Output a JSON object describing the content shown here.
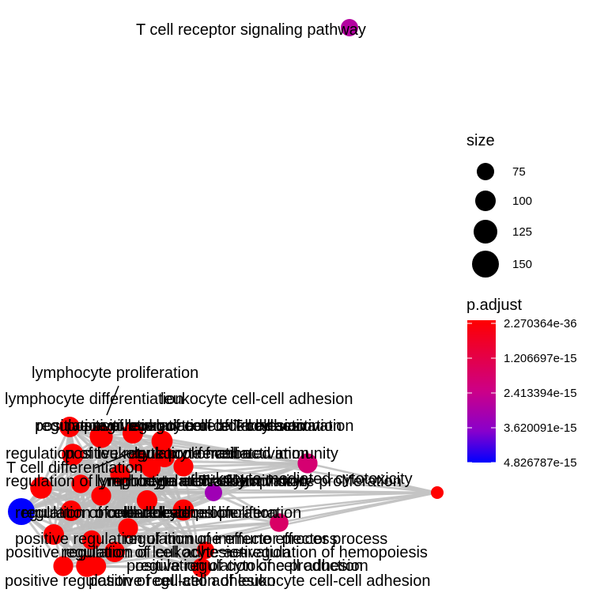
{
  "chart_data": {
    "type": "network",
    "title": "",
    "nodes": [
      {
        "label": "T cell receptor signaling pathway",
        "size": 75,
        "p_adjust": 2.9e-15
      },
      {
        "label": "lymphocyte proliferation",
        "size": 100,
        "p_adjust": 2.270364e-36
      },
      {
        "label": "lymphocyte differentiation",
        "size": 110,
        "p_adjust": 2.270364e-36
      },
      {
        "label": "leukocyte cell-cell adhesion",
        "size": 120,
        "p_adjust": 2.270364e-36
      },
      {
        "label": "positive regulation of cell-cell adhesion",
        "size": 100,
        "p_adjust": 2.270364e-36
      },
      {
        "label": "regulation of leukocyte cell-cell adhesion",
        "size": 105,
        "p_adjust": 2.270364e-36
      },
      {
        "label": "positive regulation of leukocyte activation",
        "size": 100,
        "p_adjust": 2.270364e-36
      },
      {
        "label": "positive regulation of T cell activation",
        "size": 95,
        "p_adjust": 2.270364e-36
      },
      {
        "label": "regulation of leukocyte proliferation",
        "size": 90,
        "p_adjust": 2.270364e-36
      },
      {
        "label": "positive regulation of cell activation",
        "size": 100,
        "p_adjust": 2.270364e-36
      },
      {
        "label": "leukocyte mediated immunity",
        "size": 95,
        "p_adjust": 2e-15
      },
      {
        "label": "T cell differentiation",
        "size": 95,
        "p_adjust": 2.270364e-36
      },
      {
        "label": "regulation of lymphocyte activation",
        "size": 110,
        "p_adjust": 2.270364e-36
      },
      {
        "label": "lymphocyte mediated immunity",
        "size": 85,
        "p_adjust": 2.270364e-36
      },
      {
        "label": "regulation of T cell activation",
        "size": 95,
        "p_adjust": 2.270364e-36
      },
      {
        "label": "leukocyte mediated cytotoxicity",
        "size": 75,
        "p_adjust": 3.3e-15
      },
      {
        "label": "regulation of cytokine production",
        "size": 85,
        "p_adjust": 1.8e-15
      },
      {
        "label": "regulation of lymphocyte proliferation",
        "size": 100,
        "p_adjust": 2.270364e-36
      },
      {
        "label": "regulation of cell-cell adhesion",
        "size": 105,
        "p_adjust": 2.270364e-36
      },
      {
        "label": "mononuclear cell proliferation",
        "size": 100,
        "p_adjust": 2.270364e-36
      },
      {
        "label": "regulation of cell adhesion",
        "size": 150,
        "p_adjust": 4.826787e-15
      },
      {
        "label": "leukocyte proliferation",
        "size": 95,
        "p_adjust": 2.270364e-36
      },
      {
        "label": "positive regulation of immune effector process",
        "size": 90,
        "p_adjust": 2.270364e-36
      },
      {
        "label": "regulation of immune effector process",
        "size": 100,
        "p_adjust": 2.270364e-36
      },
      {
        "label": "positive regulation of cell adhesion",
        "size": 100,
        "p_adjust": 2.270364e-36
      },
      {
        "label": "regulation of hemopoiesis",
        "size": 75,
        "p_adjust": 2.270364e-36
      },
      {
        "label": "regulation of leukocyte activation",
        "size": 110,
        "p_adjust": 2.270364e-36
      },
      {
        "label": "positive regulation of cell adhesion",
        "size": 95,
        "p_adjust": 2.270364e-36
      },
      {
        "label": "positive regulation of cell-cell adhesion",
        "size": 90,
        "p_adjust": 2.270364e-36
      },
      {
        "label": "positive regulation of leukocyte cell-cell adhesion",
        "size": 90,
        "p_adjust": 2.270364e-36
      }
    ],
    "legend": {
      "size": {
        "title": "size",
        "entries": [
          75,
          100,
          125,
          150
        ]
      },
      "color": {
        "title": "p.adjust",
        "ticks": [
          "2.270364e-36",
          "1.206697e-15",
          "2.413394e-15",
          "3.620091e-15",
          "4.826787e-15"
        ],
        "low_color": "#ff0000",
        "high_color": "#0000ff"
      }
    }
  }
}
